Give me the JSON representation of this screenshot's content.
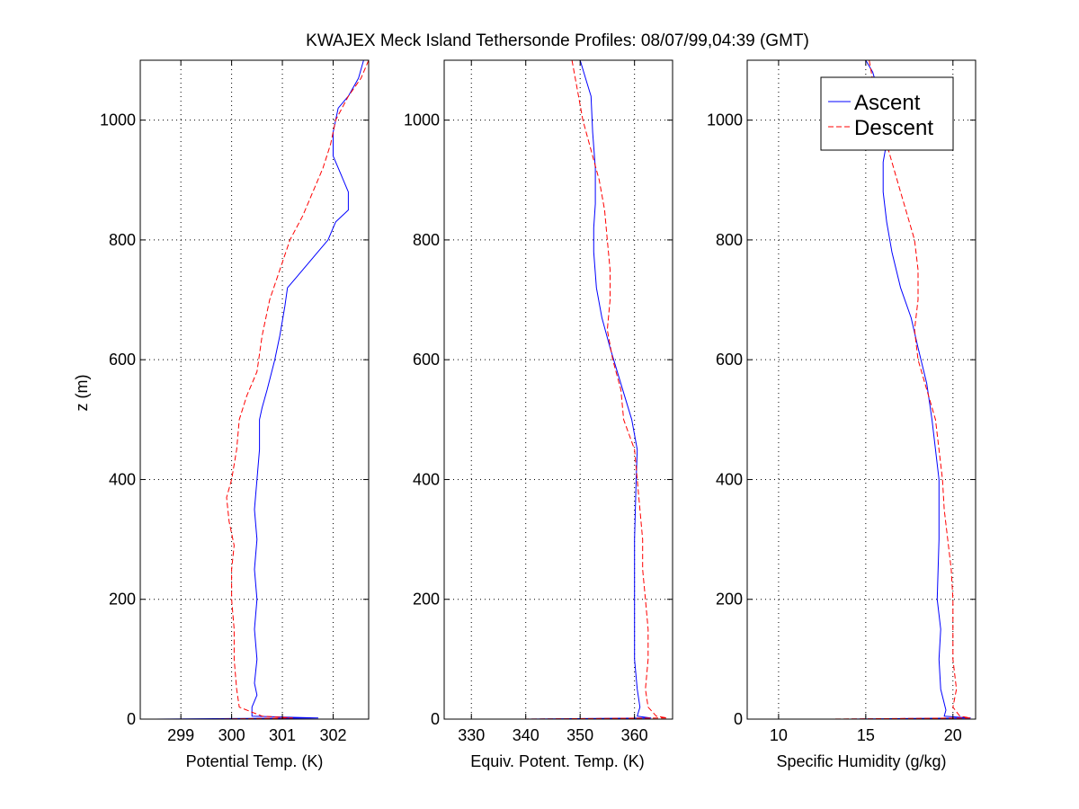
{
  "chart_data": [
    {
      "type": "line",
      "title": "KWAJEX Meck Island Tethersonde Profiles: 08/07/99,04:39 (GMT)",
      "xlabel": "Potential Temp. (K)",
      "ylabel": "z (m)",
      "xlim": [
        298.2,
        302.7
      ],
      "ylim": [
        0,
        1100
      ],
      "xticks": [
        299,
        300,
        301,
        302
      ],
      "yticks": [
        0,
        200,
        400,
        600,
        800,
        1000
      ],
      "grid": true,
      "series": [
        {
          "name": "Ascent",
          "color": "#0000ff",
          "dash": "solid",
          "points": [
            [
              298.5,
              0
            ],
            [
              301.7,
              2
            ],
            [
              300.4,
              5
            ],
            [
              300.4,
              20
            ],
            [
              300.5,
              40
            ],
            [
              300.45,
              60
            ],
            [
              300.5,
              100
            ],
            [
              300.45,
              150
            ],
            [
              300.5,
              200
            ],
            [
              300.45,
              250
            ],
            [
              300.5,
              300
            ],
            [
              300.45,
              350
            ],
            [
              300.5,
              400
            ],
            [
              300.55,
              450
            ],
            [
              300.55,
              500
            ],
            [
              300.6,
              520
            ],
            [
              300.7,
              550
            ],
            [
              300.85,
              600
            ],
            [
              300.95,
              640
            ],
            [
              301.05,
              690
            ],
            [
              301.1,
              720
            ],
            [
              301.3,
              740
            ],
            [
              301.6,
              770
            ],
            [
              301.9,
              800
            ],
            [
              302.05,
              830
            ],
            [
              302.3,
              850
            ],
            [
              302.3,
              880
            ],
            [
              302.15,
              910
            ],
            [
              302.0,
              940
            ],
            [
              302.0,
              980
            ],
            [
              302.1,
              1020
            ],
            [
              302.3,
              1040
            ],
            [
              302.5,
              1070
            ],
            [
              302.6,
              1100
            ]
          ]
        },
        {
          "name": "Descent",
          "color": "#ff0000",
          "dash": "dashed",
          "points": [
            [
              302.7,
              1100
            ],
            [
              302.55,
              1070
            ],
            [
              302.3,
              1040
            ],
            [
              302.05,
              1000
            ],
            [
              301.95,
              960
            ],
            [
              301.8,
              920
            ],
            [
              301.6,
              880
            ],
            [
              301.4,
              840
            ],
            [
              301.15,
              800
            ],
            [
              300.95,
              750
            ],
            [
              300.75,
              700
            ],
            [
              300.6,
              640
            ],
            [
              300.5,
              580
            ],
            [
              300.3,
              540
            ],
            [
              300.15,
              500
            ],
            [
              300.1,
              450
            ],
            [
              300.0,
              400
            ],
            [
              299.9,
              370
            ],
            [
              299.95,
              330
            ],
            [
              300.05,
              290
            ],
            [
              300.0,
              250
            ],
            [
              300.0,
              200
            ],
            [
              300.05,
              150
            ],
            [
              300.05,
              100
            ],
            [
              300.1,
              50
            ],
            [
              300.15,
              20
            ],
            [
              300.6,
              5
            ],
            [
              301.2,
              2
            ],
            [
              299.7,
              0
            ]
          ]
        }
      ]
    },
    {
      "type": "line",
      "xlabel": "Equiv. Potent. Temp. (K)",
      "xlim": [
        325,
        367
      ],
      "ylim": [
        0,
        1100
      ],
      "xticks": [
        330,
        340,
        350,
        360
      ],
      "yticks": [
        0,
        200,
        400,
        600,
        800,
        1000
      ],
      "grid": true,
      "series": [
        {
          "name": "Ascent",
          "color": "#0000ff",
          "dash": "solid",
          "points": [
            [
              340,
              0
            ],
            [
              363,
              2
            ],
            [
              360.5,
              5
            ],
            [
              361,
              20
            ],
            [
              360.5,
              50
            ],
            [
              360,
              100
            ],
            [
              360,
              200
            ],
            [
              360,
              300
            ],
            [
              360.3,
              400
            ],
            [
              360.5,
              450
            ],
            [
              359.5,
              500
            ],
            [
              357.5,
              560
            ],
            [
              355.5,
              620
            ],
            [
              354,
              670
            ],
            [
              353,
              720
            ],
            [
              352.5,
              780
            ],
            [
              352.5,
              820
            ],
            [
              352.8,
              860
            ],
            [
              352.8,
              920
            ],
            [
              352.3,
              980
            ],
            [
              352,
              1040
            ],
            [
              351,
              1070
            ],
            [
              350,
              1100
            ]
          ]
        },
        {
          "name": "Descent",
          "color": "#ff0000",
          "dash": "dashed",
          "points": [
            [
              348.5,
              1100
            ],
            [
              349.5,
              1050
            ],
            [
              350.5,
              1000
            ],
            [
              352,
              950
            ],
            [
              353.5,
              900
            ],
            [
              354.5,
              850
            ],
            [
              355,
              800
            ],
            [
              355.5,
              750
            ],
            [
              355.5,
              700
            ],
            [
              355,
              650
            ],
            [
              356,
              600
            ],
            [
              357.5,
              550
            ],
            [
              358,
              500
            ],
            [
              360,
              450
            ],
            [
              360.5,
              400
            ],
            [
              361,
              350
            ],
            [
              361.5,
              300
            ],
            [
              361.5,
              250
            ],
            [
              362,
              200
            ],
            [
              362.5,
              150
            ],
            [
              362.5,
              100
            ],
            [
              362,
              50
            ],
            [
              362.5,
              20
            ],
            [
              364,
              5
            ],
            [
              366,
              2
            ],
            [
              339,
              0
            ]
          ]
        }
      ]
    },
    {
      "type": "line",
      "xlabel": "Specific Humidity (g/kg)",
      "xlim": [
        8.2,
        21.3
      ],
      "ylim": [
        0,
        1100
      ],
      "xticks": [
        10,
        15,
        20
      ],
      "yticks": [
        0,
        200,
        400,
        600,
        800,
        1000
      ],
      "grid": true,
      "series": [
        {
          "name": "Ascent",
          "color": "#0000ff",
          "dash": "solid",
          "points": [
            [
              14,
              0
            ],
            [
              21,
              2
            ],
            [
              19.5,
              5
            ],
            [
              19.6,
              15
            ],
            [
              19.3,
              50
            ],
            [
              19.2,
              100
            ],
            [
              19.3,
              150
            ],
            [
              19.1,
              200
            ],
            [
              19.2,
              300
            ],
            [
              19.2,
              400
            ],
            [
              19.0,
              450
            ],
            [
              18.8,
              500
            ],
            [
              18.5,
              560
            ],
            [
              18.0,
              620
            ],
            [
              17.6,
              670
            ],
            [
              17.0,
              720
            ],
            [
              16.5,
              780
            ],
            [
              16.2,
              830
            ],
            [
              16.0,
              880
            ],
            [
              16.0,
              930
            ],
            [
              16.3,
              980
            ],
            [
              15.8,
              1040
            ],
            [
              15.4,
              1080
            ],
            [
              15.0,
              1100
            ]
          ]
        },
        {
          "name": "Descent",
          "color": "#ff0000",
          "dash": "dashed",
          "points": [
            [
              15.2,
              1100
            ],
            [
              15.5,
              1050
            ],
            [
              16.0,
              1000
            ],
            [
              16.3,
              950
            ],
            [
              16.8,
              900
            ],
            [
              17.3,
              850
            ],
            [
              17.8,
              800
            ],
            [
              18.0,
              750
            ],
            [
              18.0,
              700
            ],
            [
              17.8,
              650
            ],
            [
              18.0,
              600
            ],
            [
              18.5,
              550
            ],
            [
              19.0,
              500
            ],
            [
              19.2,
              450
            ],
            [
              19.4,
              400
            ],
            [
              19.5,
              350
            ],
            [
              19.7,
              300
            ],
            [
              19.9,
              250
            ],
            [
              20.0,
              200
            ],
            [
              20.0,
              150
            ],
            [
              20.0,
              100
            ],
            [
              20.2,
              50
            ],
            [
              20.0,
              20
            ],
            [
              20.4,
              5
            ],
            [
              21.0,
              2
            ],
            [
              12.8,
              0
            ]
          ]
        }
      ]
    }
  ],
  "legend": {
    "placement": "top-right",
    "entries": [
      "Ascent",
      "Descent"
    ]
  }
}
